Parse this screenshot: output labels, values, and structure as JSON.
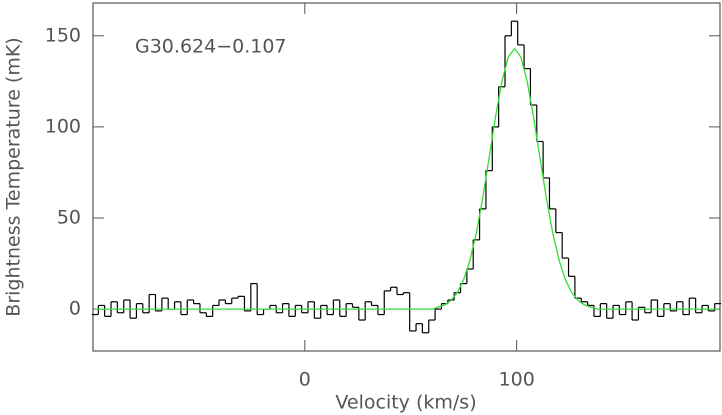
{
  "chart_data": {
    "type": "step",
    "annotation": "G30.624−0.107",
    "x_label": "Velocity (km/s)",
    "y_label": "Brightness Temperature (mK)",
    "xlim": [
      -100,
      196
    ],
    "ylim": [
      -23,
      168
    ],
    "xticks": [
      0,
      100
    ],
    "yticks": [
      0,
      50,
      100,
      150
    ],
    "x": [
      -99,
      -96,
      -93,
      -90,
      -87,
      -84,
      -81,
      -78,
      -75,
      -72,
      -69,
      -66,
      -63,
      -60,
      -57,
      -54,
      -51,
      -48,
      -45,
      -42,
      -39,
      -36,
      -33,
      -30,
      -27,
      -24,
      -21,
      -18,
      -15,
      -12,
      -9,
      -6,
      -3,
      0,
      3,
      6,
      9,
      12,
      15,
      18,
      21,
      24,
      27,
      30,
      33,
      36,
      39,
      42,
      45,
      48,
      51,
      54,
      57,
      60,
      63,
      66,
      69,
      72,
      75,
      78,
      81,
      84,
      87,
      90,
      93,
      96,
      99,
      102,
      105,
      108,
      111,
      114,
      117,
      120,
      123,
      126,
      129,
      132,
      135,
      138,
      141,
      144,
      147,
      150,
      153,
      156,
      159,
      162,
      165,
      168,
      171,
      174,
      177,
      180,
      183,
      186,
      189,
      192,
      195
    ],
    "series": [
      {
        "color": "#000000",
        "values": [
          -3,
          2,
          -4,
          4,
          -2,
          5,
          -5,
          3,
          -2,
          8,
          -1,
          6,
          0,
          4,
          -3,
          5,
          3,
          -2,
          -4,
          2,
          5,
          3,
          6,
          7,
          -1,
          14,
          -3,
          0,
          2,
          -2,
          3,
          -4,
          2,
          -2,
          4,
          -5,
          2,
          -3,
          5,
          -4,
          3,
          1,
          -6,
          4,
          2,
          -3,
          10,
          12,
          8,
          9,
          -12,
          -8,
          -13,
          -6,
          0,
          3,
          5,
          9,
          14,
          22,
          38,
          55,
          76,
          100,
          122,
          150,
          158,
          145,
          132,
          112,
          92,
          72,
          55,
          42,
          28,
          18,
          6,
          4,
          2,
          -4,
          3,
          -5,
          2,
          -3,
          4,
          -6,
          1,
          -2,
          5,
          -4,
          3,
          -1,
          4,
          -3,
          6,
          -2,
          2,
          -1,
          3
        ]
      },
      {
        "color": "#33dd33",
        "values": [
          0,
          0,
          0,
          0,
          0,
          0,
          0,
          0,
          0,
          0,
          0,
          0,
          0,
          0,
          0,
          0,
          0,
          0,
          0,
          0,
          0,
          0,
          0,
          0,
          0,
          0,
          0,
          0,
          0,
          0,
          0,
          0,
          0,
          0,
          0,
          0,
          0,
          0,
          0,
          0,
          0,
          0,
          0,
          0,
          0,
          0,
          0,
          0,
          0,
          0,
          0,
          0,
          0,
          0,
          1.1,
          2.3,
          4.8,
          9.1,
          16.2,
          27.0,
          42.0,
          61.1,
          83.0,
          105.3,
          124.8,
          138.3,
          143,
          138.3,
          124.8,
          105.3,
          83.0,
          61.1,
          42.0,
          27.0,
          16.2,
          9.1,
          4.8,
          2.3,
          1.1,
          0,
          0,
          0,
          0,
          0,
          0,
          0,
          0,
          0,
          0,
          0,
          0,
          0,
          0,
          0,
          0,
          0,
          0,
          0,
          0
        ]
      }
    ]
  }
}
